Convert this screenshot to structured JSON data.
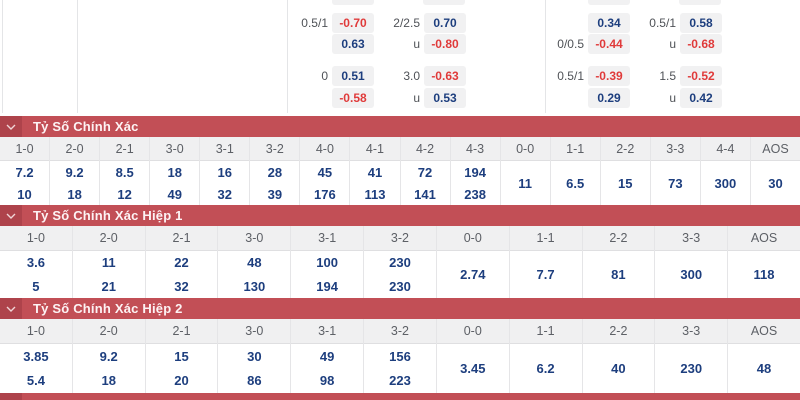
{
  "colors": {
    "bar_red": "#c24f56",
    "bar_red_dark": "#ae434b",
    "value_navy": "#1d3e7e",
    "odds_negative_red": "#e03a3a",
    "header_row_bg": "#f0f0f1",
    "odds_box_bg": "#f1f1f2"
  },
  "icons": {
    "collapse": "chevron-down-icon"
  },
  "top_panel": {
    "groups": [
      {
        "rows": [
          {
            "l1": "0.5/1",
            "v1": "-0.70",
            "l2": "2/2.5",
            "v2": "0.70"
          },
          {
            "l1": "",
            "v1": "0.63",
            "l2": "u",
            "v2": "-0.80"
          },
          {
            "l1": "0",
            "v1": "0.51",
            "l2": "3.0",
            "v2": "-0.63"
          },
          {
            "l1": "",
            "v1": "-0.58",
            "l2": "u",
            "v2": "0.53"
          }
        ]
      },
      {
        "rows": [
          {
            "l1": "",
            "v1": "0.34",
            "l2": "0.5/1",
            "v2": "0.58"
          },
          {
            "l1": "0/0.5",
            "v1": "-0.44",
            "l2": "u",
            "v2": "-0.68"
          },
          {
            "l1": "0.5/1",
            "v1": "-0.39",
            "l2": "1.5",
            "v2": "-0.52"
          },
          {
            "l1": "",
            "v1": "0.29",
            "l2": "u",
            "v2": "0.42"
          }
        ]
      }
    ]
  },
  "sections": [
    {
      "title": "Tỷ Số Chính Xác",
      "columns": [
        "1-0",
        "2-0",
        "2-1",
        "3-0",
        "3-1",
        "3-2",
        "4-0",
        "4-1",
        "4-2",
        "4-3",
        "0-0",
        "1-1",
        "2-2",
        "3-3",
        "4-4",
        "AOS"
      ],
      "values": [
        [
          "7.2",
          "10"
        ],
        [
          "9.2",
          "18"
        ],
        [
          "8.5",
          "12"
        ],
        [
          "18",
          "49"
        ],
        [
          "16",
          "32"
        ],
        [
          "28",
          "39"
        ],
        [
          "45",
          "176"
        ],
        [
          "41",
          "113"
        ],
        [
          "72",
          "141"
        ],
        [
          "194",
          "238"
        ],
        [
          "11"
        ],
        [
          "6.5"
        ],
        [
          "15"
        ],
        [
          "73"
        ],
        [
          "300"
        ],
        [
          "30"
        ]
      ]
    },
    {
      "title": "Tỷ Số Chính Xác Hiệp 1",
      "columns": [
        "1-0",
        "2-0",
        "2-1",
        "3-0",
        "3-1",
        "3-2",
        "0-0",
        "1-1",
        "2-2",
        "3-3",
        "AOS"
      ],
      "values": [
        [
          "3.6",
          "5"
        ],
        [
          "11",
          "21"
        ],
        [
          "22",
          "32"
        ],
        [
          "48",
          "130"
        ],
        [
          "100",
          "194"
        ],
        [
          "230",
          "230"
        ],
        [
          "2.74"
        ],
        [
          "7.7"
        ],
        [
          "81"
        ],
        [
          "300"
        ],
        [
          "118"
        ]
      ]
    },
    {
      "title": "Tỷ Số Chính Xác Hiệp 2",
      "columns": [
        "1-0",
        "2-0",
        "2-1",
        "3-0",
        "3-1",
        "3-2",
        "0-0",
        "1-1",
        "2-2",
        "3-3",
        "AOS"
      ],
      "values": [
        [
          "3.85",
          "5.4"
        ],
        [
          "9.2",
          "18"
        ],
        [
          "15",
          "20"
        ],
        [
          "30",
          "86"
        ],
        [
          "49",
          "98"
        ],
        [
          "156",
          "223"
        ],
        [
          "3.45"
        ],
        [
          "6.2"
        ],
        [
          "40"
        ],
        [
          "230"
        ],
        [
          "48"
        ]
      ]
    }
  ]
}
